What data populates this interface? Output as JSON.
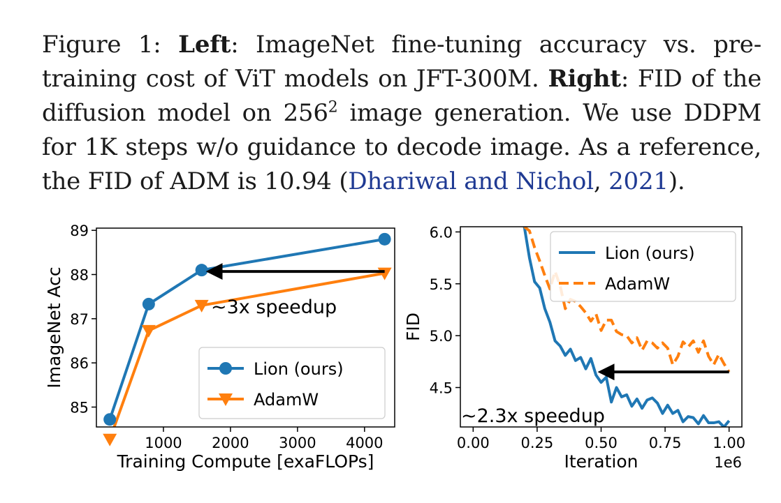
{
  "caption": {
    "fig_label": "Figure 1:",
    "left_label": "Left",
    "part1": ": ImageNet fine-tuning accuracy vs. pre-training cost of ViT models on JFT-300M.",
    "right_label": "Right",
    "part2": ": FID of the diffusion model on ",
    "res_base": "256",
    "res_exp": "2",
    "part3": " image generation. We use DDPM for 1K steps w/o guidance to decode image. As a reference, the FID of ADM is 10.94 (",
    "cite_authors": "Dhariwal and Nichol",
    "cite_sep": ", ",
    "cite_year": "2021",
    "part4": ")."
  },
  "colors": {
    "lion": "#1f77b4",
    "adamw": "#ff7f0e",
    "arrow": "#000000"
  },
  "chart_data": [
    {
      "type": "line",
      "title": "",
      "xlabel": "Training Compute [exaFLOPs]",
      "ylabel": "ImageNet Acc",
      "xlim": [
        0,
        4450
      ],
      "ylim": [
        84.55,
        89.05
      ],
      "xticks": [
        1000,
        2000,
        3000,
        4000
      ],
      "yticks": [
        85,
        86,
        87,
        88,
        89
      ],
      "series": [
        {
          "name": "Lion (ours)",
          "marker": "circle",
          "x": [
            200,
            780,
            1570,
            4300
          ],
          "y": [
            84.72,
            87.33,
            88.1,
            88.8
          ]
        },
        {
          "name": "AdamW",
          "marker": "triangle-down",
          "x": [
            200,
            780,
            1570,
            4300
          ],
          "y": [
            84.27,
            86.73,
            87.3,
            88.03
          ]
        }
      ],
      "annotation": {
        "text": "~3x speedup",
        "arrow_from": [
          4300,
          88.07
        ],
        "arrow_to": [
          1570,
          88.07
        ]
      },
      "legend": "lower-right"
    },
    {
      "type": "line",
      "title": "",
      "xlabel": "Iteration",
      "ylabel": "FID",
      "x_scale_label": "1e6",
      "xlim": [
        -0.05,
        1.05
      ],
      "ylim": [
        4.12,
        6.05
      ],
      "xticks": [
        "0.00",
        "0.25",
        "0.50",
        "0.75",
        "1.00"
      ],
      "yticks": [
        "4.5",
        "5.0",
        "5.5",
        "6.0"
      ],
      "series": [
        {
          "name": "Lion (ours)",
          "style": "solid",
          "x": [
            0.2,
            0.22,
            0.24,
            0.26,
            0.28,
            0.3,
            0.32,
            0.34,
            0.36,
            0.38,
            0.4,
            0.42,
            0.44,
            0.46,
            0.48,
            0.5,
            0.52,
            0.54,
            0.56,
            0.58,
            0.6,
            0.62,
            0.64,
            0.66,
            0.68,
            0.7,
            0.72,
            0.74,
            0.76,
            0.78,
            0.8,
            0.82,
            0.84,
            0.86,
            0.88,
            0.9,
            0.92,
            0.94,
            0.96,
            0.98,
            1.0
          ],
          "y": [
            6.05,
            5.75,
            5.52,
            5.46,
            5.26,
            5.13,
            4.95,
            4.9,
            4.81,
            4.87,
            4.76,
            4.79,
            4.68,
            4.78,
            4.62,
            4.55,
            4.6,
            4.36,
            4.5,
            4.41,
            4.43,
            4.32,
            4.39,
            4.3,
            4.38,
            4.4,
            4.35,
            4.25,
            4.33,
            4.25,
            4.28,
            4.17,
            4.22,
            4.21,
            4.15,
            4.23,
            4.16,
            4.16,
            4.17,
            4.12,
            4.18
          ]
        },
        {
          "name": "AdamW",
          "style": "dashed",
          "x": [
            0.2,
            0.22,
            0.24,
            0.26,
            0.28,
            0.3,
            0.32,
            0.34,
            0.36,
            0.38,
            0.4,
            0.42,
            0.44,
            0.46,
            0.48,
            0.5,
            0.52,
            0.54,
            0.56,
            0.58,
            0.6,
            0.62,
            0.64,
            0.66,
            0.68,
            0.7,
            0.72,
            0.74,
            0.76,
            0.78,
            0.8,
            0.82,
            0.84,
            0.86,
            0.88,
            0.9,
            0.92,
            0.94,
            0.96,
            0.98,
            1.0
          ],
          "y": [
            6.05,
            6.01,
            5.85,
            5.72,
            5.58,
            5.45,
            5.62,
            5.48,
            5.26,
            5.35,
            5.33,
            5.28,
            5.22,
            5.14,
            5.21,
            5.05,
            5.15,
            5.15,
            5.04,
            5.01,
            5.0,
            4.93,
            4.98,
            4.86,
            4.95,
            4.93,
            4.88,
            4.93,
            4.88,
            4.72,
            4.8,
            4.94,
            4.89,
            4.95,
            4.84,
            4.95,
            4.8,
            4.72,
            4.82,
            4.73,
            4.65
          ]
        }
      ],
      "annotation": {
        "text": "~2.3x speedup",
        "arrow_from": [
          1.0,
          4.65
        ],
        "arrow_to": [
          0.47,
          4.65
        ]
      },
      "legend": "upper-right"
    }
  ]
}
